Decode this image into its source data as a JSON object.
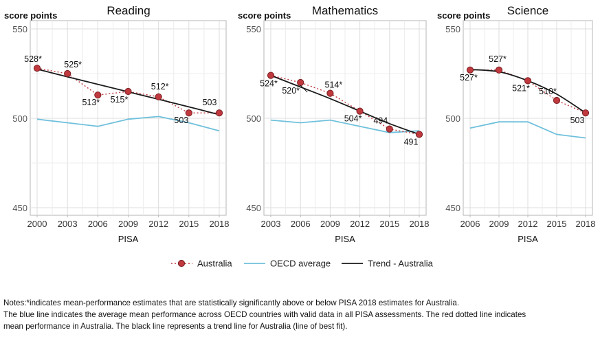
{
  "colors": {
    "australia": "#c0393f",
    "australia_stroke": "#7a1f22",
    "oecd": "#6fc0dc",
    "trend": "#1a1a1a",
    "grid": "#dcdcdc",
    "border": "#b5b5b5"
  },
  "legend": {
    "australia": "Australia",
    "oecd": "OECD average",
    "trend": "Trend - Australia"
  },
  "notes": [
    "Notes:*indicates mean-performance estimates that are statistically significantly above or below PISA 2018 estimates for Australia.",
    "The blue line indicates the average mean performance across OECD countries with valid data in all PISA assessments. The red dotted line indicates",
    "mean performance in Australia. The black line represents a trend line for Australia (line of best fit)."
  ],
  "chart_data": [
    {
      "type": "line",
      "title": "Reading",
      "ylabel": "score points",
      "xlabel": "PISA",
      "ylim": [
        450,
        550
      ],
      "yticks": [
        450,
        500,
        550
      ],
      "x": [
        2000,
        2003,
        2006,
        2009,
        2012,
        2015,
        2018
      ],
      "grid": true,
      "series": [
        {
          "name": "Australia",
          "values": [
            528,
            525,
            513,
            515,
            512,
            503,
            503
          ],
          "labels": [
            "528*",
            "525*",
            "513*",
            "515*",
            "512*",
            "503",
            "503"
          ]
        },
        {
          "name": "OECD average",
          "values": [
            499.5,
            497.5,
            495.5,
            499.5,
            501,
            497.5,
            493
          ]
        },
        {
          "name": "Trend - Australia",
          "values": [
            527.5,
            523.2,
            519,
            514.8,
            510.6,
            506.4,
            502
          ]
        }
      ]
    },
    {
      "type": "line",
      "title": "Mathematics",
      "ylabel": "score points",
      "xlabel": "PISA",
      "ylim": [
        450,
        550
      ],
      "yticks": [
        450,
        500,
        550
      ],
      "x": [
        2003,
        2006,
        2009,
        2012,
        2015,
        2018
      ],
      "grid": true,
      "series": [
        {
          "name": "Australia",
          "values": [
            524,
            520,
            514,
            504,
            494,
            491
          ],
          "labels": [
            "524*",
            "520*",
            "514*",
            "504*",
            "494",
            "491"
          ]
        },
        {
          "name": "OECD average",
          "values": [
            499,
            497.5,
            499,
            495.5,
            492,
            493
          ]
        },
        {
          "name": "Trend - Australia",
          "values": [
            524,
            517.5,
            511,
            504,
            497,
            491
          ]
        }
      ]
    },
    {
      "type": "line",
      "title": "Science",
      "ylabel": "score points",
      "xlabel": "PISA",
      "ylim": [
        450,
        550
      ],
      "yticks": [
        450,
        500,
        550
      ],
      "x": [
        2006,
        2009,
        2012,
        2015,
        2018
      ],
      "grid": true,
      "series": [
        {
          "name": "Australia",
          "values": [
            527,
            527,
            521,
            510,
            503
          ],
          "labels": [
            "527*",
            "527*",
            "521*",
            "510*",
            "503"
          ]
        },
        {
          "name": "OECD average",
          "values": [
            494.5,
            498,
            498,
            491,
            489
          ]
        },
        {
          "name": "Trend - Australia",
          "values": [
            527.3,
            526,
            521,
            513.5,
            503
          ]
        }
      ]
    }
  ]
}
